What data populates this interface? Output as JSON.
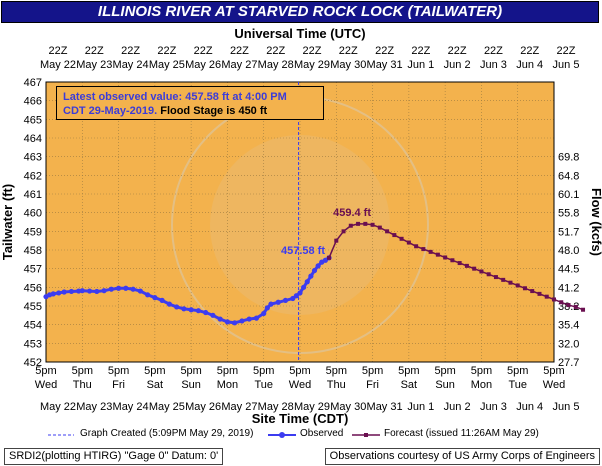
{
  "banner": {
    "title": "ILLINOIS RIVER AT STARVED ROCK LOCK (TAILWATER)"
  },
  "info": {
    "line1": "Latest observed value: 457.58 ft at 4:00 PM",
    "line2a": "CDT 29-May-2019.",
    "line2b": "Flood Stage is 450 ft"
  },
  "legend": {
    "created": "Graph Created (5:09PM May 29, 2019)",
    "observed": "Observed",
    "forecast": "Forecast (issued 11:26AM May 29)"
  },
  "footer": {
    "left": "SRDI2(plotting HTIRG) \"Gage 0\" Datum: 0'",
    "right": "Observations courtesy of US Army Corps of Engineers"
  },
  "colors": {
    "plot_bg": "#f3b24d",
    "observed": "#3c3cf0",
    "forecast": "#6a0f50",
    "banner": "#14148a"
  },
  "chart_data": {
    "type": "line",
    "top_axis_label": "Universal Time (UTC)",
    "xlabel": "Site Time (CDT)",
    "ylabel": "Tailwater (ft)",
    "y2label": "Flow (kcfs)",
    "ylim": [
      452,
      467
    ],
    "yticks": [
      452,
      453,
      454,
      455,
      456,
      457,
      458,
      459,
      460,
      461,
      462,
      463,
      464,
      465,
      466,
      467
    ],
    "y2ticks": [
      {
        "stage": 453,
        "label": "32.0"
      },
      {
        "stage": 454,
        "label": "35.4"
      },
      {
        "stage": 455,
        "label": "38.2"
      },
      {
        "stage": 456,
        "label": "41.2"
      },
      {
        "stage": 457,
        "label": "44.5"
      },
      {
        "stage": 458,
        "label": "48.0"
      },
      {
        "stage": 459,
        "label": "51.7"
      },
      {
        "stage": 460,
        "label": "55.8"
      },
      {
        "stage": 461,
        "label": "60.1"
      },
      {
        "stage": 462,
        "label": "64.8"
      },
      {
        "stage": 463,
        "label": "69.8"
      },
      {
        "stage": 452,
        "label": "27.7"
      }
    ],
    "top_ticks": [
      {
        "t": "22Z",
        "d": "May 22"
      },
      {
        "t": "22Z",
        "d": "May 23"
      },
      {
        "t": "22Z",
        "d": "May 24"
      },
      {
        "t": "22Z",
        "d": "May 25"
      },
      {
        "t": "22Z",
        "d": "May 26"
      },
      {
        "t": "22Z",
        "d": "May 27"
      },
      {
        "t": "22Z",
        "d": "May 28"
      },
      {
        "t": "22Z",
        "d": "May 29"
      },
      {
        "t": "22Z",
        "d": "May 30"
      },
      {
        "t": "22Z",
        "d": "May 31"
      },
      {
        "t": "22Z",
        "d": "Jun 1"
      },
      {
        "t": "22Z",
        "d": "Jun 2"
      },
      {
        "t": "22Z",
        "d": "Jun 3"
      },
      {
        "t": "22Z",
        "d": "Jun 4"
      },
      {
        "t": "22Z",
        "d": "Jun 5"
      }
    ],
    "bottom_ticks": [
      {
        "t": "5pm",
        "w": "Wed",
        "d": "May 22"
      },
      {
        "t": "5pm",
        "w": "Thu",
        "d": "May 23"
      },
      {
        "t": "5pm",
        "w": "Fri",
        "d": "May 24"
      },
      {
        "t": "5pm",
        "w": "Sat",
        "d": "May 25"
      },
      {
        "t": "5pm",
        "w": "Sun",
        "d": "May 26"
      },
      {
        "t": "5pm",
        "w": "Mon",
        "d": "May 27"
      },
      {
        "t": "5pm",
        "w": "Tue",
        "d": "May 28"
      },
      {
        "t": "5pm",
        "w": "Wed",
        "d": "May 29"
      },
      {
        "t": "5pm",
        "w": "Thu",
        "d": "May 30"
      },
      {
        "t": "5pm",
        "w": "Fri",
        "d": "May 31"
      },
      {
        "t": "5pm",
        "w": "Sat",
        "d": "Jun 1"
      },
      {
        "t": "5pm",
        "w": "Sun",
        "d": "Jun 2"
      },
      {
        "t": "5pm",
        "w": "Mon",
        "d": "Jun 3"
      },
      {
        "t": "5pm",
        "w": "Tue",
        "d": "Jun 4"
      },
      {
        "t": "5pm",
        "w": "Wed",
        "d": "Jun 5"
      }
    ],
    "flood_stage": 450,
    "graph_created_day": 6.96,
    "observed": [
      [
        0.0,
        455.5
      ],
      [
        0.1,
        455.6
      ],
      [
        0.2,
        455.65
      ],
      [
        0.35,
        455.7
      ],
      [
        0.5,
        455.75
      ],
      [
        0.7,
        455.78
      ],
      [
        0.9,
        455.8
      ],
      [
        1.0,
        455.82
      ],
      [
        1.2,
        455.8
      ],
      [
        1.4,
        455.78
      ],
      [
        1.6,
        455.82
      ],
      [
        1.8,
        455.9
      ],
      [
        2.0,
        455.95
      ],
      [
        2.2,
        455.95
      ],
      [
        2.4,
        455.9
      ],
      [
        2.6,
        455.8
      ],
      [
        2.8,
        455.6
      ],
      [
        3.0,
        455.45
      ],
      [
        3.2,
        455.3
      ],
      [
        3.4,
        455.1
      ],
      [
        3.6,
        454.95
      ],
      [
        3.8,
        454.85
      ],
      [
        4.0,
        454.8
      ],
      [
        4.2,
        454.75
      ],
      [
        4.4,
        454.65
      ],
      [
        4.6,
        454.5
      ],
      [
        4.8,
        454.3
      ],
      [
        5.0,
        454.15
      ],
      [
        5.2,
        454.1
      ],
      [
        5.4,
        454.2
      ],
      [
        5.6,
        454.3
      ],
      [
        5.8,
        454.35
      ],
      [
        6.0,
        454.6
      ],
      [
        6.1,
        454.9
      ],
      [
        6.2,
        455.1
      ],
      [
        6.4,
        455.2
      ],
      [
        6.6,
        455.3
      ],
      [
        6.8,
        455.4
      ],
      [
        6.9,
        455.55
      ],
      [
        7.0,
        455.7
      ],
      [
        7.1,
        456.0
      ],
      [
        7.2,
        456.3
      ],
      [
        7.3,
        456.6
      ],
      [
        7.4,
        456.9
      ],
      [
        7.5,
        457.15
      ],
      [
        7.6,
        457.35
      ],
      [
        7.7,
        457.45
      ],
      [
        7.8,
        457.58
      ]
    ],
    "observed_label": "457.58 ft",
    "forecast": [
      [
        7.8,
        457.58
      ],
      [
        8.0,
        458.5
      ],
      [
        8.2,
        459.0
      ],
      [
        8.4,
        459.3
      ],
      [
        8.6,
        459.4
      ],
      [
        8.8,
        459.4
      ],
      [
        9.0,
        459.35
      ],
      [
        9.2,
        459.2
      ],
      [
        9.4,
        459.0
      ],
      [
        9.6,
        458.8
      ],
      [
        9.8,
        458.6
      ],
      [
        10.0,
        458.4
      ],
      [
        10.2,
        458.2
      ],
      [
        10.4,
        458.05
      ],
      [
        10.6,
        457.9
      ],
      [
        10.8,
        457.75
      ],
      [
        11.0,
        457.6
      ],
      [
        11.2,
        457.45
      ],
      [
        11.4,
        457.3
      ],
      [
        11.6,
        457.15
      ],
      [
        11.8,
        457.0
      ],
      [
        12.0,
        456.85
      ],
      [
        12.2,
        456.7
      ],
      [
        12.4,
        456.55
      ],
      [
        12.6,
        456.4
      ],
      [
        12.8,
        456.25
      ],
      [
        13.0,
        456.1
      ],
      [
        13.2,
        455.95
      ],
      [
        13.4,
        455.8
      ],
      [
        13.6,
        455.65
      ],
      [
        13.8,
        455.5
      ],
      [
        14.0,
        455.35
      ],
      [
        14.2,
        455.2
      ],
      [
        14.4,
        455.05
      ],
      [
        14.6,
        454.95
      ],
      [
        14.8,
        454.8
      ]
    ],
    "forecast_label": "459.4 ft"
  }
}
